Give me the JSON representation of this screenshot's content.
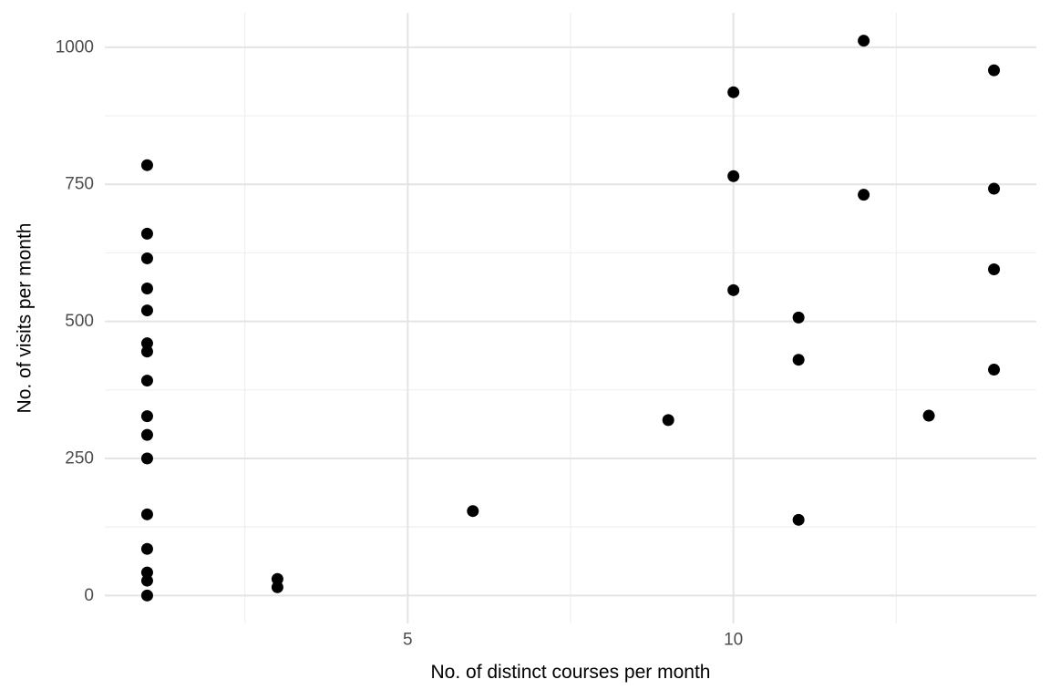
{
  "chart_data": {
    "type": "scatter",
    "title": "",
    "xlabel": "No. of distinct courses per month",
    "ylabel": "No. of visits per month",
    "xlim": [
      0.35,
      14.65
    ],
    "ylim": [
      -51,
      1063
    ],
    "x_major_ticks": [
      5,
      10
    ],
    "x_minor_ticks": [
      2.5,
      7.5,
      12.5
    ],
    "y_major_ticks": [
      0,
      250,
      500,
      750,
      1000
    ],
    "y_minor_ticks": [
      125,
      375,
      625,
      875
    ],
    "grid": "major and minor, light gray, no axis lines, no tick marks",
    "legend": "none",
    "point_radius_px": 6.5,
    "points": [
      {
        "x": 1,
        "y": 785
      },
      {
        "x": 1,
        "y": 660
      },
      {
        "x": 1,
        "y": 615
      },
      {
        "x": 1,
        "y": 560
      },
      {
        "x": 1,
        "y": 520
      },
      {
        "x": 1,
        "y": 460
      },
      {
        "x": 1,
        "y": 445
      },
      {
        "x": 1,
        "y": 392
      },
      {
        "x": 1,
        "y": 327
      },
      {
        "x": 1,
        "y": 293
      },
      {
        "x": 1,
        "y": 250
      },
      {
        "x": 1,
        "y": 148
      },
      {
        "x": 1,
        "y": 85
      },
      {
        "x": 1,
        "y": 42
      },
      {
        "x": 1,
        "y": 27
      },
      {
        "x": 1,
        "y": 0
      },
      {
        "x": 3,
        "y": 30
      },
      {
        "x": 3,
        "y": 15
      },
      {
        "x": 6,
        "y": 154
      },
      {
        "x": 9,
        "y": 320
      },
      {
        "x": 10,
        "y": 918
      },
      {
        "x": 10,
        "y": 765
      },
      {
        "x": 10,
        "y": 557
      },
      {
        "x": 11,
        "y": 507
      },
      {
        "x": 11,
        "y": 430
      },
      {
        "x": 11,
        "y": 138
      },
      {
        "x": 12,
        "y": 1012
      },
      {
        "x": 12,
        "y": 731
      },
      {
        "x": 13,
        "y": 328
      },
      {
        "x": 14,
        "y": 958
      },
      {
        "x": 14,
        "y": 742
      },
      {
        "x": 14,
        "y": 595
      },
      {
        "x": 14,
        "y": 412
      }
    ],
    "colors": {
      "point": "#000000",
      "grid_major": "#E4E4E4",
      "grid_minor": "#EFEFEF",
      "tick_label": "#4D4D4D",
      "axis_title": "#000000",
      "background": "#FFFFFF"
    }
  }
}
